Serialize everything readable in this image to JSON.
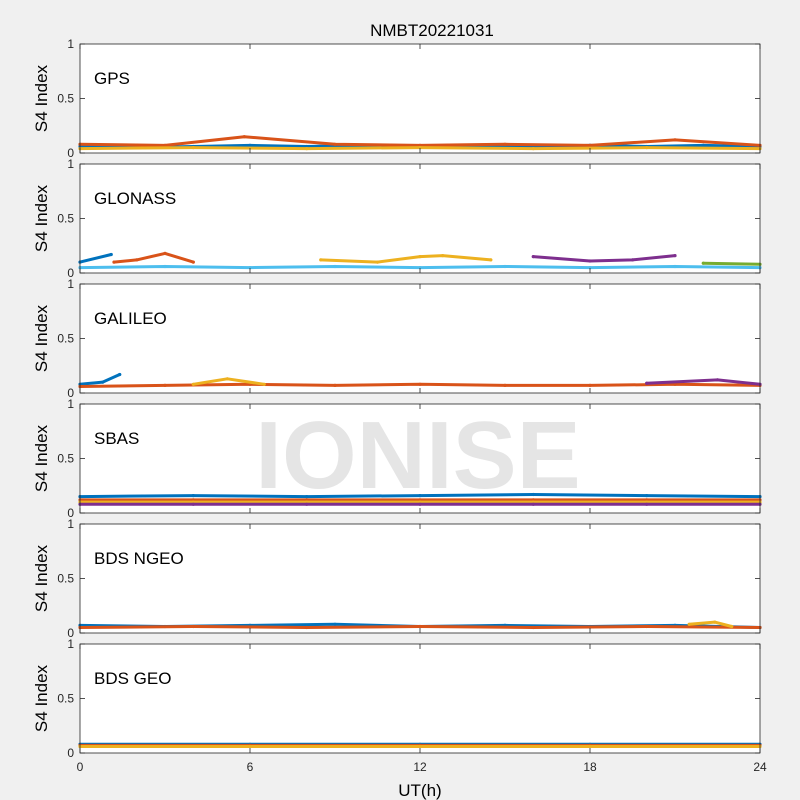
{
  "figure": {
    "title": "NMBT20221031",
    "xlabel": "UT(h)",
    "watermark": "IONISE"
  },
  "series_colors": [
    "#0072BD",
    "#D95319",
    "#EDB120",
    "#7E2F8E",
    "#77AC30",
    "#4DBEEE",
    "#A2142F"
  ],
  "chart_data": [
    {
      "type": "scatter",
      "panel_label": "GPS",
      "ylabel": "S4 Index",
      "xlim": [
        0,
        24
      ],
      "ylim": [
        0,
        1
      ],
      "xticks": [
        0,
        6,
        12,
        18,
        24
      ],
      "yticks": [
        0,
        0.5,
        1
      ],
      "x_tick_labels": [
        "",
        "",
        "",
        "",
        ""
      ],
      "y_tick_labels": [
        "0",
        "0.5",
        "1"
      ],
      "series": [
        {
          "x": [
            0,
            2,
            4,
            6,
            8,
            10,
            12,
            14,
            16,
            18,
            20,
            22,
            24
          ],
          "y": [
            0.06,
            0.05,
            0.06,
            0.07,
            0.06,
            0.07,
            0.06,
            0.07,
            0.06,
            0.07,
            0.06,
            0.07,
            0.06
          ]
        },
        {
          "x": [
            0,
            3,
            5.8,
            9,
            12,
            15,
            18,
            21,
            24
          ],
          "y": [
            0.08,
            0.07,
            0.15,
            0.08,
            0.07,
            0.08,
            0.07,
            0.12,
            0.07
          ]
        },
        {
          "x": [
            0,
            4,
            8,
            12,
            16,
            20,
            24
          ],
          "y": [
            0.04,
            0.05,
            0.04,
            0.05,
            0.04,
            0.05,
            0.04
          ]
        }
      ]
    },
    {
      "type": "scatter",
      "panel_label": "GLONASS",
      "ylabel": "S4 Index",
      "xlim": [
        0,
        24
      ],
      "ylim": [
        0,
        1
      ],
      "xticks": [
        0,
        6,
        12,
        18,
        24
      ],
      "yticks": [
        0,
        0.5,
        1
      ],
      "x_tick_labels": [
        "",
        "",
        "",
        "",
        ""
      ],
      "y_tick_labels": [
        "0",
        "0.5",
        "1"
      ],
      "series": [
        {
          "x": [
            0,
            1.1
          ],
          "y": [
            0.1,
            0.17
          ]
        },
        {
          "x": [
            1.2,
            2.0,
            3.0,
            4.0
          ],
          "y": [
            0.1,
            0.12,
            0.18,
            0.1
          ]
        },
        {
          "x": [
            8.5,
            10.5,
            12.0,
            12.8,
            14.5
          ],
          "y": [
            0.12,
            0.1,
            0.15,
            0.16,
            0.12
          ]
        },
        {
          "x": [
            16.0,
            18.0,
            19.5,
            21.0
          ],
          "y": [
            0.15,
            0.11,
            0.12,
            0.16
          ]
        },
        {
          "x": [
            22.0,
            24.0
          ],
          "y": [
            0.09,
            0.08
          ]
        },
        {
          "x": [
            0,
            3,
            6,
            9,
            12,
            15,
            18,
            21,
            24
          ],
          "y": [
            0.05,
            0.06,
            0.05,
            0.06,
            0.05,
            0.06,
            0.05,
            0.06,
            0.05
          ]
        }
      ]
    },
    {
      "type": "scatter",
      "panel_label": "GALILEO",
      "ylabel": "S4 Index",
      "xlim": [
        0,
        24
      ],
      "ylim": [
        0,
        1
      ],
      "xticks": [
        0,
        6,
        12,
        18,
        24
      ],
      "yticks": [
        0,
        0.5,
        1
      ],
      "x_tick_labels": [
        "",
        "",
        "",
        "",
        ""
      ],
      "y_tick_labels": [
        "0",
        "0.5",
        "1"
      ],
      "series": [
        {
          "x": [
            0,
            0.8,
            1.4
          ],
          "y": [
            0.08,
            0.1,
            0.17
          ]
        },
        {
          "x": [
            0,
            3,
            6,
            9,
            12,
            15,
            18,
            21,
            24
          ],
          "y": [
            0.06,
            0.07,
            0.08,
            0.07,
            0.08,
            0.07,
            0.07,
            0.08,
            0.07
          ]
        },
        {
          "x": [
            4,
            5.2,
            6.5
          ],
          "y": [
            0.08,
            0.13,
            0.08
          ]
        },
        {
          "x": [
            20,
            22.5,
            24
          ],
          "y": [
            0.09,
            0.12,
            0.08
          ]
        }
      ]
    },
    {
      "type": "scatter",
      "panel_label": "SBAS",
      "ylabel": "S4 Index",
      "xlim": [
        0,
        24
      ],
      "ylim": [
        0,
        1
      ],
      "xticks": [
        0,
        6,
        12,
        18,
        24
      ],
      "yticks": [
        0,
        0.5,
        1
      ],
      "x_tick_labels": [
        "",
        "",
        "",
        "",
        ""
      ],
      "y_tick_labels": [
        "0",
        "0.5",
        "1"
      ],
      "series": [
        {
          "x": [
            0,
            4,
            8,
            12,
            16,
            20,
            24
          ],
          "y": [
            0.15,
            0.16,
            0.15,
            0.16,
            0.17,
            0.16,
            0.15
          ]
        },
        {
          "x": [
            0,
            4,
            8,
            12,
            16,
            20,
            24
          ],
          "y": [
            0.12,
            0.12,
            0.12,
            0.12,
            0.12,
            0.12,
            0.12
          ]
        },
        {
          "x": [
            0,
            4,
            8,
            12,
            16,
            20,
            24
          ],
          "y": [
            0.1,
            0.1,
            0.1,
            0.1,
            0.1,
            0.1,
            0.1
          ]
        },
        {
          "x": [
            0,
            4,
            8,
            12,
            16,
            20,
            24
          ],
          "y": [
            0.08,
            0.08,
            0.08,
            0.08,
            0.08,
            0.08,
            0.08
          ]
        }
      ]
    },
    {
      "type": "scatter",
      "panel_label": "BDS NGEO",
      "ylabel": "S4 Index",
      "xlim": [
        0,
        24
      ],
      "ylim": [
        0,
        1
      ],
      "xticks": [
        0,
        6,
        12,
        18,
        24
      ],
      "yticks": [
        0,
        0.5,
        1
      ],
      "x_tick_labels": [
        "",
        "",
        "",
        "",
        ""
      ],
      "y_tick_labels": [
        "0",
        "0.5",
        "1"
      ],
      "series": [
        {
          "x": [
            0,
            3,
            6,
            9,
            12,
            15,
            18,
            21,
            24
          ],
          "y": [
            0.07,
            0.06,
            0.07,
            0.08,
            0.06,
            0.07,
            0.06,
            0.07,
            0.05
          ]
        },
        {
          "x": [
            0,
            4,
            8,
            12,
            16,
            20,
            24
          ],
          "y": [
            0.05,
            0.06,
            0.05,
            0.06,
            0.05,
            0.06,
            0.05
          ]
        },
        {
          "x": [
            21.5,
            22.4,
            23.0
          ],
          "y": [
            0.08,
            0.1,
            0.06
          ]
        }
      ]
    },
    {
      "type": "scatter",
      "panel_label": "BDS GEO",
      "ylabel": "S4 Index",
      "xlim": [
        0,
        24
      ],
      "ylim": [
        0,
        1
      ],
      "xticks": [
        0,
        6,
        12,
        18,
        24
      ],
      "yticks": [
        0,
        0.5,
        1
      ],
      "x_tick_labels": [
        "0",
        "6",
        "12",
        "18",
        "24"
      ],
      "y_tick_labels": [
        "0",
        "0.5",
        "1"
      ],
      "series": [
        {
          "x": [
            0,
            6,
            12,
            18,
            24
          ],
          "y": [
            0.08,
            0.08,
            0.08,
            0.08,
            0.08
          ]
        },
        {
          "x": [
            0,
            6,
            12,
            18,
            24
          ],
          "y": [
            0.07,
            0.07,
            0.07,
            0.07,
            0.07
          ]
        },
        {
          "x": [
            0,
            6,
            12,
            18,
            24
          ],
          "y": [
            0.06,
            0.06,
            0.06,
            0.06,
            0.06
          ]
        }
      ]
    }
  ]
}
